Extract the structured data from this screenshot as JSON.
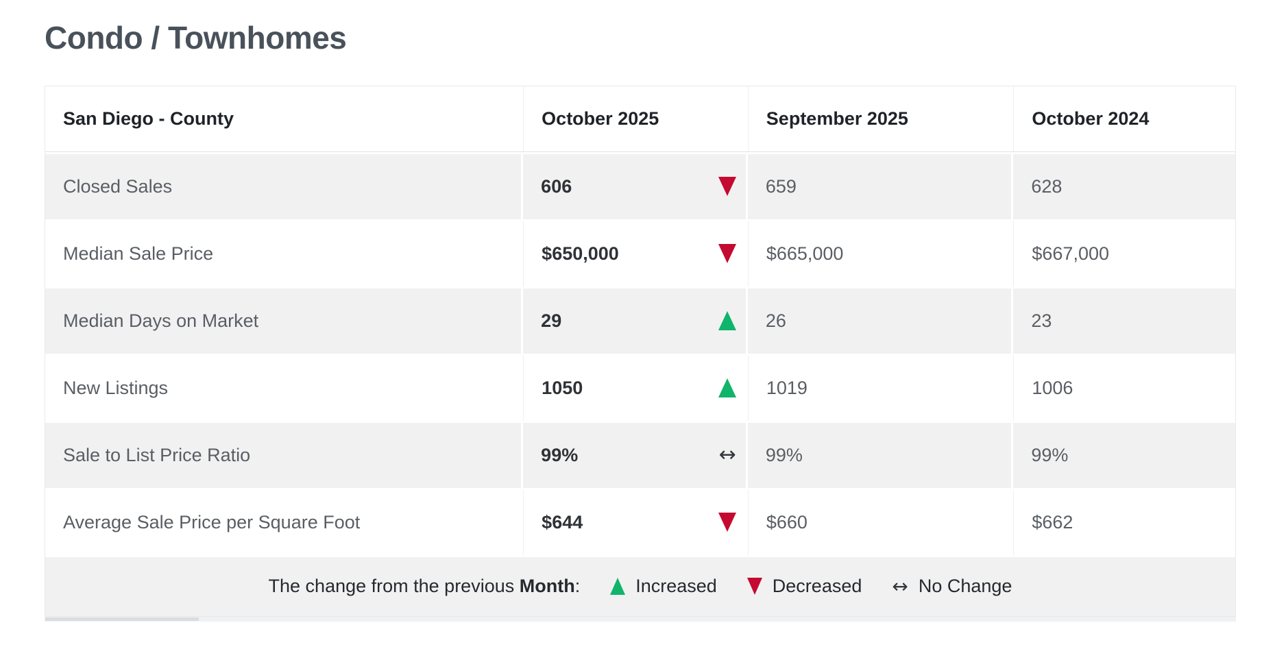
{
  "page": {
    "title": "Condo / Townhomes"
  },
  "colors": {
    "increase": "#10b46a",
    "decrease": "#c40a30",
    "alt_row_bg": "#f1f1f2",
    "header_text": "#1f2328",
    "label_text": "#5a5e63",
    "title_text": "#49515a"
  },
  "table": {
    "headers": [
      "San Diego - County",
      "October 2025",
      "September 2025",
      "October 2024"
    ],
    "rows": [
      {
        "label": "Closed Sales",
        "current": "606",
        "change": "decreased",
        "previous_month": "659",
        "previous_year": "628"
      },
      {
        "label": "Median Sale Price",
        "current": "$650,000",
        "change": "decreased",
        "previous_month": "$665,000",
        "previous_year": "$667,000"
      },
      {
        "label": "Median Days on Market",
        "current": "29",
        "change": "increased",
        "previous_month": "26",
        "previous_year": "23"
      },
      {
        "label": "New Listings",
        "current": "1050",
        "change": "increased",
        "previous_month": "1019",
        "previous_year": "1006"
      },
      {
        "label": "Sale to List Price Ratio",
        "current": "99%",
        "change": "no-change",
        "previous_month": "99%",
        "previous_year": "99%"
      },
      {
        "label": "Average Sale Price per Square Foot",
        "current": "$644",
        "change": "decreased",
        "previous_month": "$660",
        "previous_year": "$662"
      }
    ]
  },
  "legend": {
    "prefix": "The change from the previous ",
    "bold_word": "Month",
    "suffix": ":",
    "no_change_glyph": "↔",
    "items": [
      {
        "symbol": "up-triangle",
        "label": "Increased"
      },
      {
        "symbol": "down-triangle",
        "label": "Decreased"
      },
      {
        "symbol": "left-right-arrow",
        "label": "No Change"
      }
    ]
  }
}
